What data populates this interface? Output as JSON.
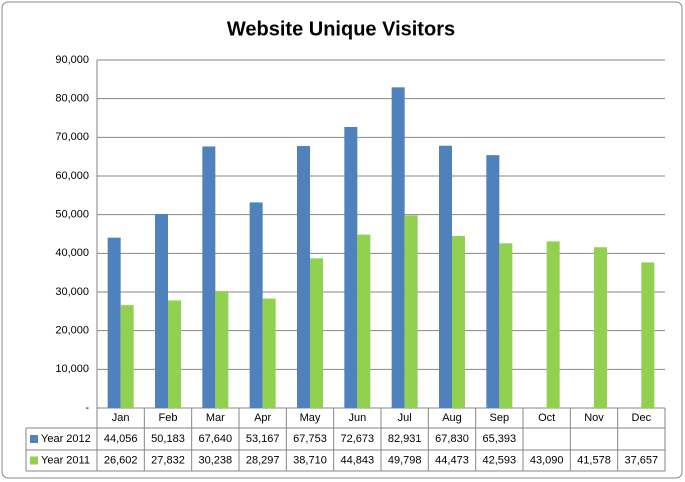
{
  "chart_data": {
    "type": "bar",
    "title": "Website Unique Visitors",
    "categories": [
      "Jan",
      "Feb",
      "Mar",
      "Apr",
      "May",
      "Jun",
      "Jul",
      "Aug",
      "Sep",
      "Oct",
      "Nov",
      "Dec"
    ],
    "series": [
      {
        "name": "Year 2012",
        "color": "#4f81bd",
        "values": [
          44056,
          50183,
          67640,
          53167,
          67753,
          72673,
          82931,
          67830,
          65393,
          null,
          null,
          null
        ],
        "value_labels": [
          "44,056",
          "50,183",
          "67,640",
          "53,167",
          "67,753",
          "72,673",
          "82,931",
          "67,830",
          "65,393",
          null,
          null,
          null
        ]
      },
      {
        "name": "Year 2011",
        "color": "#92d050",
        "values": [
          26602,
          27832,
          30238,
          28297,
          38710,
          44843,
          49798,
          44473,
          42593,
          43090,
          41578,
          37657
        ],
        "value_labels": [
          "26,602",
          "27,832",
          "30,238",
          "28,297",
          "38,710",
          "44,843",
          "49,798",
          "44,473",
          "42,593",
          "43,090",
          "41,578",
          "37,657"
        ]
      }
    ],
    "ylim": [
      0,
      90000
    ],
    "yticks": [
      {
        "value": 0,
        "label": "-"
      },
      {
        "value": 10000,
        "label": "10,000"
      },
      {
        "value": 20000,
        "label": "20,000"
      },
      {
        "value": 30000,
        "label": "30,000"
      },
      {
        "value": 40000,
        "label": "40,000"
      },
      {
        "value": 50000,
        "label": "50,000"
      },
      {
        "value": 60000,
        "label": "60,000"
      },
      {
        "value": 70000,
        "label": "70,000"
      },
      {
        "value": 80000,
        "label": "80,000"
      },
      {
        "value": 90000,
        "label": "90,000"
      }
    ],
    "grid": true
  }
}
